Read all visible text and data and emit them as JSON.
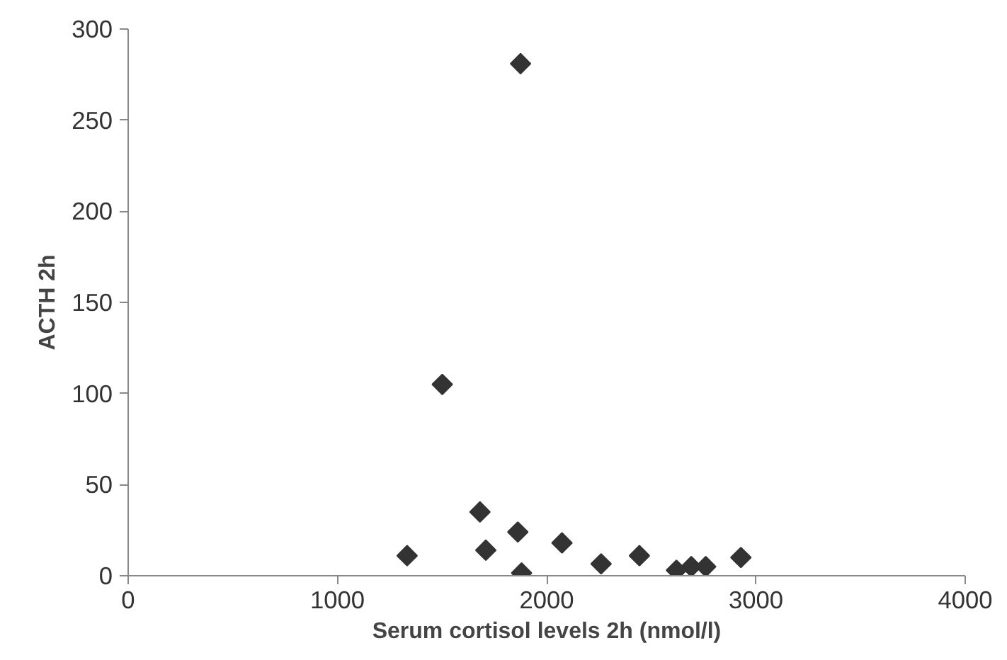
{
  "chart_data": {
    "type": "scatter",
    "xlabel": "Serum cortisol levels 2h (nmol/l)",
    "ylabel": "ACTH 2h",
    "xlim": [
      0,
      4000
    ],
    "xticks": [
      0,
      1000,
      2000,
      3000,
      4000
    ],
    "ylim": [
      0,
      300
    ],
    "yticks": [
      0,
      50,
      100,
      150,
      200,
      250,
      300
    ],
    "grid": false,
    "marker": "diamond",
    "series": [
      {
        "color": "#333333",
        "x": [
          1333,
          1501,
          1681,
          1709,
          1862,
          1875,
          1880,
          2073,
          2260,
          2443,
          2620,
          2691,
          2760,
          2928
        ],
        "values": [
          11,
          105,
          35,
          14,
          24,
          281,
          1.5,
          18,
          6.5,
          11,
          3,
          5,
          5,
          10
        ]
      }
    ]
  }
}
